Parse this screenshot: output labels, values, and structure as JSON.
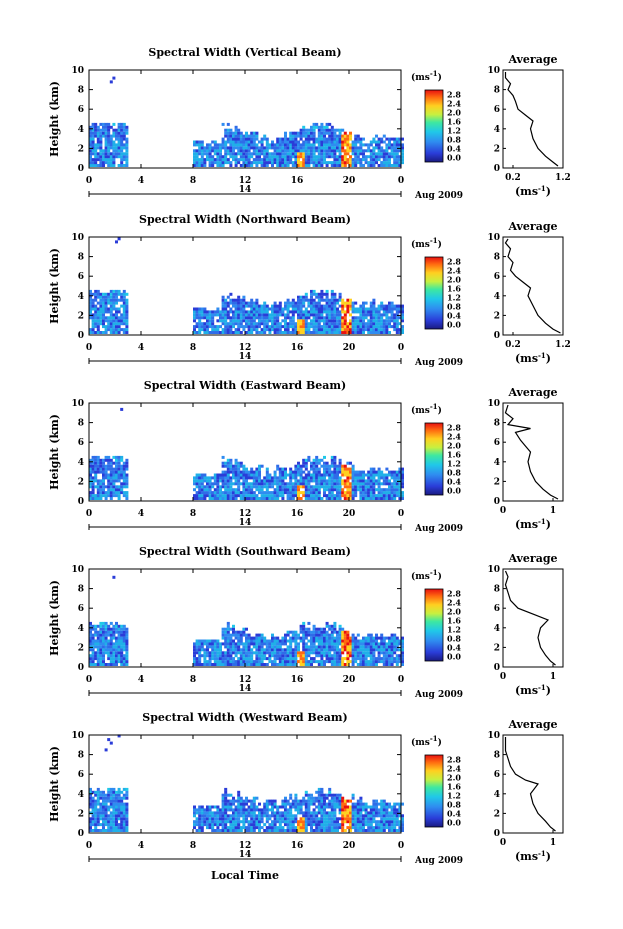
{
  "figure": {
    "xlabel": "Local Time",
    "date_label": "Aug 2009",
    "colorbar_unit": "(ms",
    "colorbar_unit_exp": "-1",
    "colorbar_unit_close": ")",
    "avg_title": "Average",
    "avg_unit": "(ms",
    "avg_unit_exp": "-1",
    "avg_unit_close": ")"
  },
  "chart_data": [
    {
      "type": "heatmap",
      "title": "Spectral Width (Vertical Beam)",
      "ylabel": "Height (km)",
      "xticks": [
        "0",
        "4",
        "8",
        "12",
        "16",
        "20",
        "0"
      ],
      "xlim": [
        0,
        24
      ],
      "yticks": [
        "0",
        "2",
        "4",
        "6",
        "8",
        "10"
      ],
      "ylim": [
        0,
        10
      ],
      "day_label": "14",
      "colorbar_ticks": [
        "2.8",
        "2.4",
        "2.0",
        "1.6",
        "1.2",
        "0.8",
        "0.4",
        "0.0"
      ],
      "colorbar_range": [
        0,
        2.8
      ],
      "average": {
        "xlabel": "(ms-1)",
        "xticks": [
          "0.2",
          "1.2"
        ],
        "xlim": [
          0,
          1.2
        ],
        "ylim": [
          0,
          10
        ],
        "yticks": [
          "0",
          "2",
          "4",
          "6",
          "8",
          "10"
        ],
        "profile": [
          [
            1.1,
            0.2
          ],
          [
            1.0,
            0.6
          ],
          [
            0.85,
            1.2
          ],
          [
            0.7,
            2.0
          ],
          [
            0.6,
            3.0
          ],
          [
            0.55,
            4.0
          ],
          [
            0.6,
            4.8
          ],
          [
            0.45,
            5.4
          ],
          [
            0.3,
            6.0
          ],
          [
            0.25,
            6.8
          ],
          [
            0.2,
            7.4
          ],
          [
            0.1,
            8.0
          ],
          [
            0.15,
            8.6
          ],
          [
            0.05,
            9.2
          ],
          [
            0.05,
            9.8
          ]
        ]
      }
    },
    {
      "type": "heatmap",
      "title": "Spectral Width (Northward Beam)",
      "ylabel": "Height (km)",
      "xticks": [
        "0",
        "4",
        "8",
        "12",
        "16",
        "20",
        "0"
      ],
      "xlim": [
        0,
        24
      ],
      "yticks": [
        "0",
        "2",
        "4",
        "6",
        "8",
        "10"
      ],
      "ylim": [
        0,
        10
      ],
      "day_label": "14",
      "colorbar_ticks": [
        "2.8",
        "2.4",
        "2.0",
        "1.6",
        "1.2",
        "0.8",
        "0.4",
        "0.0"
      ],
      "colorbar_range": [
        0,
        2.8
      ],
      "average": {
        "xlabel": "(ms-1)",
        "xticks": [
          "0.2",
          "1.2"
        ],
        "xlim": [
          0,
          1.2
        ],
        "ylim": [
          0,
          10
        ],
        "yticks": [
          "0",
          "2",
          "4",
          "6",
          "8",
          "10"
        ],
        "profile": [
          [
            1.15,
            0.2
          ],
          [
            1.0,
            0.6
          ],
          [
            0.85,
            1.2
          ],
          [
            0.7,
            2.0
          ],
          [
            0.6,
            3.0
          ],
          [
            0.5,
            4.0
          ],
          [
            0.55,
            4.8
          ],
          [
            0.4,
            5.4
          ],
          [
            0.25,
            6.0
          ],
          [
            0.15,
            6.6
          ],
          [
            0.2,
            7.4
          ],
          [
            0.1,
            8.0
          ],
          [
            0.15,
            8.8
          ],
          [
            0.05,
            9.4
          ],
          [
            0.1,
            9.8
          ]
        ]
      }
    },
    {
      "type": "heatmap",
      "title": "Spectral Width (Eastward Beam)",
      "ylabel": "Height (km)",
      "xticks": [
        "0",
        "4",
        "8",
        "12",
        "16",
        "20",
        "0"
      ],
      "xlim": [
        0,
        24
      ],
      "yticks": [
        "0",
        "2",
        "4",
        "6",
        "8",
        "10"
      ],
      "ylim": [
        0,
        10
      ],
      "day_label": "14",
      "colorbar_ticks": [
        "2.8",
        "2.4",
        "2.0",
        "1.6",
        "1.2",
        "0.8",
        "0.4",
        "0.0"
      ],
      "colorbar_range": [
        0,
        2.8
      ],
      "average": {
        "xlabel": "(ms-1)",
        "xticks": [
          "0",
          "1"
        ],
        "xlim": [
          0,
          1.2
        ],
        "ylim": [
          0,
          10
        ],
        "yticks": [
          "0",
          "2",
          "4",
          "6",
          "8",
          "10"
        ],
        "profile": [
          [
            1.1,
            0.2
          ],
          [
            0.95,
            0.6
          ],
          [
            0.8,
            1.2
          ],
          [
            0.65,
            2.0
          ],
          [
            0.55,
            3.0
          ],
          [
            0.5,
            4.0
          ],
          [
            0.55,
            5.0
          ],
          [
            0.45,
            5.6
          ],
          [
            0.35,
            6.2
          ],
          [
            0.25,
            7.0
          ],
          [
            0.55,
            7.4
          ],
          [
            0.1,
            7.8
          ],
          [
            0.2,
            8.4
          ],
          [
            0.05,
            9.0
          ],
          [
            0.1,
            9.8
          ]
        ]
      }
    },
    {
      "type": "heatmap",
      "title": "Spectral Width (Southward Beam)",
      "ylabel": "Height (km)",
      "xticks": [
        "0",
        "4",
        "8",
        "12",
        "16",
        "20",
        "0"
      ],
      "xlim": [
        0,
        24
      ],
      "yticks": [
        "0",
        "2",
        "4",
        "6",
        "8",
        "10"
      ],
      "ylim": [
        0,
        10
      ],
      "day_label": "14",
      "colorbar_ticks": [
        "2.8",
        "2.4",
        "2.0",
        "1.6",
        "1.2",
        "0.8",
        "0.4",
        "0.0"
      ],
      "colorbar_range": [
        0,
        2.8
      ],
      "average": {
        "xlabel": "(ms-1)",
        "xticks": [
          "0",
          "1"
        ],
        "xlim": [
          0,
          1.2
        ],
        "ylim": [
          0,
          10
        ],
        "yticks": [
          "0",
          "2",
          "4",
          "6",
          "8",
          "10"
        ],
        "profile": [
          [
            1.05,
            0.2
          ],
          [
            0.95,
            0.6
          ],
          [
            0.85,
            1.2
          ],
          [
            0.75,
            2.0
          ],
          [
            0.7,
            3.0
          ],
          [
            0.75,
            4.0
          ],
          [
            0.9,
            4.8
          ],
          [
            0.6,
            5.4
          ],
          [
            0.3,
            6.0
          ],
          [
            0.15,
            6.8
          ],
          [
            0.1,
            7.6
          ],
          [
            0.05,
            8.4
          ],
          [
            0.1,
            9.2
          ],
          [
            0.05,
            9.8
          ]
        ]
      }
    },
    {
      "type": "heatmap",
      "title": "Spectral Width (Westward Beam)",
      "ylabel": "Height (km)",
      "xticks": [
        "0",
        "4",
        "8",
        "12",
        "16",
        "20",
        "0"
      ],
      "xlim": [
        0,
        24
      ],
      "yticks": [
        "0",
        "2",
        "4",
        "6",
        "8",
        "10"
      ],
      "ylim": [
        0,
        10
      ],
      "day_label": "14",
      "colorbar_ticks": [
        "2.8",
        "2.4",
        "2.0",
        "1.6",
        "1.2",
        "0.8",
        "0.4",
        "0.0"
      ],
      "colorbar_range": [
        0,
        2.8
      ],
      "average": {
        "xlabel": "(ms-1)",
        "xticks": [
          "0",
          "1"
        ],
        "xlim": [
          0,
          1.2
        ],
        "ylim": [
          0,
          10
        ],
        "yticks": [
          "0",
          "2",
          "4",
          "6",
          "8",
          "10"
        ],
        "profile": [
          [
            1.05,
            0.2
          ],
          [
            0.95,
            0.6
          ],
          [
            0.85,
            1.2
          ],
          [
            0.7,
            2.0
          ],
          [
            0.6,
            3.0
          ],
          [
            0.55,
            4.0
          ],
          [
            0.7,
            5.0
          ],
          [
            0.45,
            5.4
          ],
          [
            0.25,
            6.0
          ],
          [
            0.15,
            6.8
          ],
          [
            0.1,
            7.6
          ],
          [
            0.05,
            8.4
          ],
          [
            0.05,
            9.2
          ],
          [
            0.05,
            9.8
          ]
        ]
      }
    }
  ]
}
